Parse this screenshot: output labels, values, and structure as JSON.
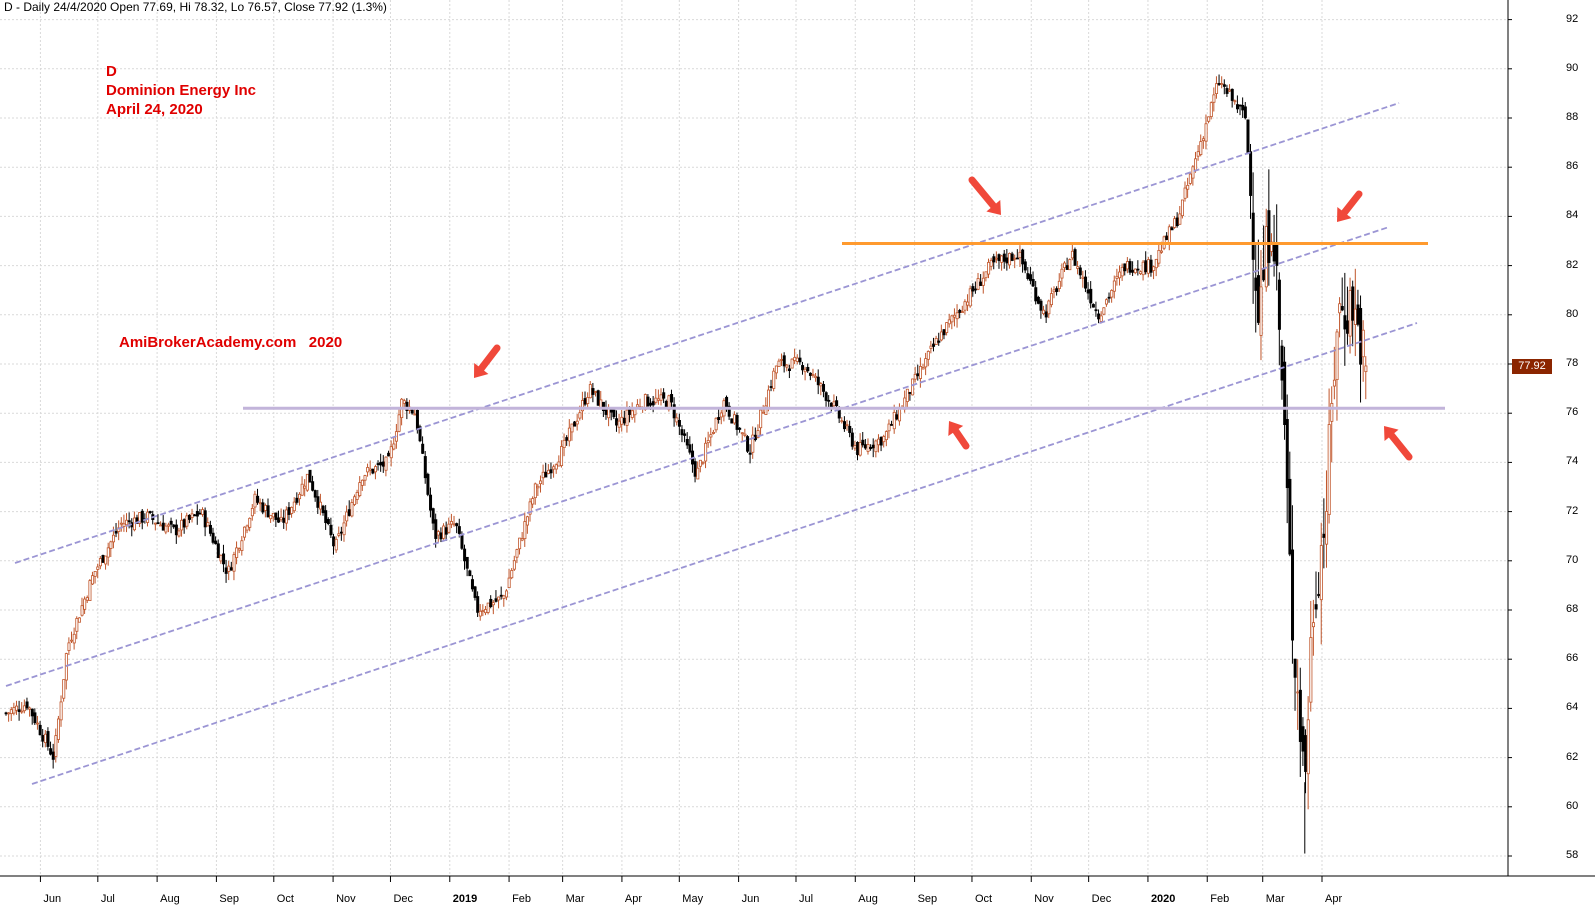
{
  "header": {
    "text": "D - Daily 24/4/2020 Open 77.69, Hi 78.32, Lo 76.57, Close 77.92 (1.3%)"
  },
  "annotations": {
    "ticker": "D",
    "company": "Dominion Energy Inc",
    "date": "April 24, 2020",
    "watermark": "AmiBrokerAcademy.com   2020"
  },
  "last_price_tag": "77.92",
  "colors": {
    "up_candle": "#c0552a",
    "down_candle": "#000000",
    "channel_line": "#9b95d4",
    "resistance_line": "#ff9a2e",
    "support_line": "#c2b4da",
    "arrow": "#f0483a",
    "annotation_text": "#e00000",
    "grid": "#d9d9d9"
  },
  "chart_data": {
    "type": "candlestick",
    "title": "D - Daily 24/4/2020",
    "ylim": [
      57,
      93
    ],
    "y_ticks": [
      58,
      60,
      62,
      64,
      66,
      68,
      70,
      72,
      74,
      76,
      78,
      80,
      82,
      84,
      86,
      88,
      90,
      92
    ],
    "x_ticks": [
      "Jun",
      "Jul",
      "Aug",
      "Sep",
      "Oct",
      "Nov",
      "Dec",
      "2019",
      "Feb",
      "Mar",
      "Apr",
      "May",
      "Jun",
      "Jul",
      "Aug",
      "Sep",
      "Oct",
      "Nov",
      "Dec",
      "2020",
      "Feb",
      "Mar",
      "Apr"
    ],
    "x_tick_dates": [
      "2018-06",
      "2018-07",
      "2018-08",
      "2018-09",
      "2018-10",
      "2018-11",
      "2018-12",
      "2019-01",
      "2019-02",
      "2019-03",
      "2019-04",
      "2019-05",
      "2019-06",
      "2019-07",
      "2019-08",
      "2019-09",
      "2019-10",
      "2019-11",
      "2019-12",
      "2020-01",
      "2020-02",
      "2020-03",
      "2020-04"
    ],
    "last_bar": {
      "date": "2020-04-24",
      "open": 77.69,
      "high": 78.32,
      "low": 76.57,
      "close": 77.92,
      "change_pct": 1.3
    },
    "price_path": [
      [
        "2018-05-14",
        63.8
      ],
      [
        "2018-05-25",
        64.2
      ],
      [
        "2018-06-08",
        62.0
      ],
      [
        "2018-06-15",
        66.5
      ],
      [
        "2018-06-29",
        69.5
      ],
      [
        "2018-07-13",
        71.5
      ],
      [
        "2018-07-27",
        71.8
      ],
      [
        "2018-08-10",
        71.2
      ],
      [
        "2018-08-24",
        72.0
      ],
      [
        "2018-09-07",
        69.5
      ],
      [
        "2018-09-21",
        72.5
      ],
      [
        "2018-10-05",
        71.5
      ],
      [
        "2018-10-19",
        73.5
      ],
      [
        "2018-11-02",
        70.5
      ],
      [
        "2018-11-16",
        73.5
      ],
      [
        "2018-11-30",
        74.0
      ],
      [
        "2018-12-07",
        76.5
      ],
      [
        "2018-12-14",
        76.0
      ],
      [
        "2018-12-24",
        71.0
      ],
      [
        "2019-01-04",
        71.5
      ],
      [
        "2019-01-15",
        68.0
      ],
      [
        "2019-01-29",
        68.5
      ],
      [
        "2019-02-15",
        73.0
      ],
      [
        "2019-03-01",
        74.5
      ],
      [
        "2019-03-15",
        77.0
      ],
      [
        "2019-03-29",
        75.5
      ],
      [
        "2019-04-12",
        76.5
      ],
      [
        "2019-04-26",
        76.5
      ],
      [
        "2019-05-10",
        73.5
      ],
      [
        "2019-05-24",
        76.5
      ],
      [
        "2019-06-07",
        74.5
      ],
      [
        "2019-06-21",
        78.0
      ],
      [
        "2019-07-05",
        78.0
      ],
      [
        "2019-07-19",
        76.5
      ],
      [
        "2019-08-02",
        74.5
      ],
      [
        "2019-08-16",
        75.0
      ],
      [
        "2019-08-30",
        77.0
      ],
      [
        "2019-09-13",
        79.0
      ],
      [
        "2019-09-27",
        80.5
      ],
      [
        "2019-10-11",
        82.0
      ],
      [
        "2019-10-25",
        82.5
      ],
      [
        "2019-11-08",
        80.0
      ],
      [
        "2019-11-22",
        82.5
      ],
      [
        "2019-12-06",
        80.0
      ],
      [
        "2019-12-20",
        82.0
      ],
      [
        "2020-01-03",
        82.0
      ],
      [
        "2020-01-17",
        84.0
      ],
      [
        "2020-02-07",
        89.5
      ],
      [
        "2020-02-21",
        88.0
      ],
      [
        "2020-02-28",
        80.0
      ],
      [
        "2020-03-06",
        84.5
      ],
      [
        "2020-03-12",
        76.0
      ],
      [
        "2020-03-16",
        68.0
      ],
      [
        "2020-03-23",
        61.0
      ],
      [
        "2020-03-27",
        68.0
      ],
      [
        "2020-04-03",
        72.0
      ],
      [
        "2020-04-09",
        80.0
      ],
      [
        "2020-04-17",
        80.5
      ],
      [
        "2020-04-24",
        77.92
      ]
    ]
  }
}
